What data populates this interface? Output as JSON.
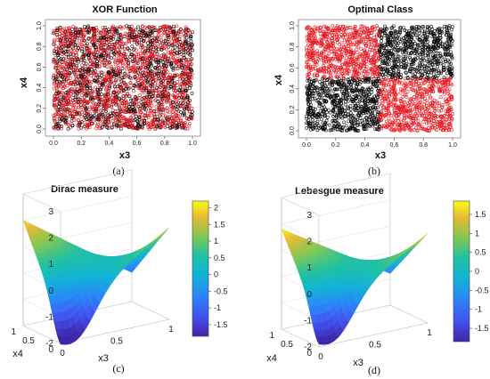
{
  "chart_data": [
    {
      "type": "scatter",
      "panel": "(a)",
      "title": "XOR Function",
      "xlabel": "x3",
      "ylabel": "x4",
      "xlim": [
        0,
        1
      ],
      "ylim": [
        0,
        1
      ],
      "xticks": [
        "0.0",
        "0.2",
        "0.4",
        "0.6",
        "0.8",
        "1.0"
      ],
      "yticks": [
        "0.0",
        "0.2",
        "0.4",
        "0.6",
        "0.8",
        "1.0"
      ],
      "series": [
        {
          "color": "#e8141c",
          "distribution": "uniform over [0,1]x[0,1], mixed with black"
        },
        {
          "color": "#000000",
          "distribution": "uniform over [0,1]x[0,1], mixed with red"
        }
      ]
    },
    {
      "type": "scatter",
      "panel": "(b)",
      "title": "Optimal Class",
      "xlabel": "x3",
      "ylabel": "x4",
      "xlim": [
        0,
        1
      ],
      "ylim": [
        0,
        1
      ],
      "xticks": [
        "0.0",
        "0.2",
        "0.4",
        "0.6",
        "0.8",
        "1.0"
      ],
      "yticks": [
        "0.0",
        "0.2",
        "0.4",
        "0.6",
        "0.8",
        "1.0"
      ],
      "regions": [
        {
          "x": [
            0,
            0.5
          ],
          "y": [
            0.5,
            1
          ],
          "color": "#e8141c"
        },
        {
          "x": [
            0.5,
            1
          ],
          "y": [
            0.5,
            1
          ],
          "color": "#000000"
        },
        {
          "x": [
            0,
            0.5
          ],
          "y": [
            0,
            0.5
          ],
          "color": "#000000"
        },
        {
          "x": [
            0.5,
            1
          ],
          "y": [
            0,
            0.5
          ],
          "color": "#e8141c"
        }
      ]
    },
    {
      "type": "surface",
      "panel": "(c)",
      "title": "Dirac measure",
      "xlabel": "x3",
      "ylabel": "x4",
      "zlim": [
        -2,
        3
      ],
      "zticks": [
        "-2",
        "-1",
        "0",
        "1",
        "2",
        "3"
      ],
      "xticks": [
        "0",
        "0.5",
        "1"
      ],
      "yticks": [
        "0",
        "0.5",
        "1"
      ],
      "corners": {
        "x0y0": -1.2,
        "x1y0": 1.5,
        "x0y1": 2.0,
        "x1y1": -0.9
      },
      "min_value": -2.0,
      "colorbar": {
        "range": [
          -1.85,
          2.2
        ],
        "ticks": [
          "2",
          "1.5",
          "1",
          "0.5",
          "0",
          "-0.5",
          "-1",
          "-1.5"
        ]
      }
    },
    {
      "type": "surface",
      "panel": "(d)",
      "title": "Lebesgue measure",
      "xlabel": "x3",
      "ylabel": "x4",
      "zlim": [
        -2,
        3
      ],
      "zticks": [
        "-2",
        "-1",
        "0",
        "1",
        "2",
        "3"
      ],
      "xticks": [
        "0",
        "0.5",
        "1"
      ],
      "yticks": [
        "0",
        "0.5",
        "1"
      ],
      "corners": {
        "x0y0": -1.1,
        "x1y0": 1.4,
        "x0y1": 1.8,
        "x1y1": -0.8
      },
      "min_value": -1.9,
      "colorbar": {
        "range": [
          -1.85,
          1.85
        ],
        "ticks": [
          "1.5",
          "1",
          "0.5",
          "0",
          "-0.5",
          "-1",
          "-1.5"
        ]
      }
    }
  ]
}
